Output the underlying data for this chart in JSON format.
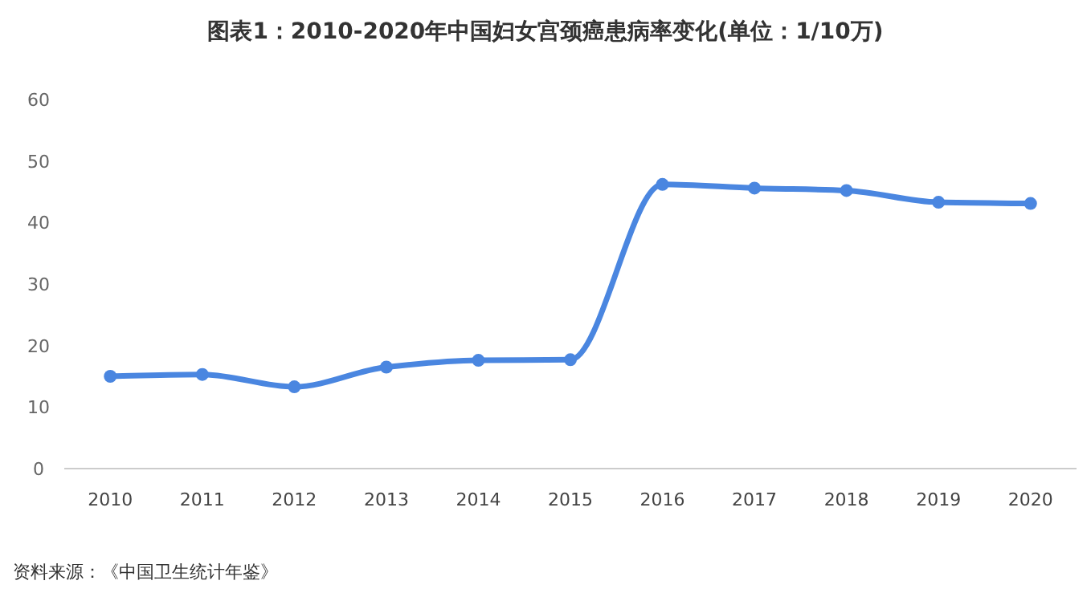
{
  "chart_data": {
    "type": "line",
    "title": "图表1：2010-2020年中国妇女宫颈癌患病率变化(单位：1/10万)",
    "categories": [
      "2010",
      "2011",
      "2012",
      "2013",
      "2014",
      "2015",
      "2016",
      "2017",
      "2018",
      "2019",
      "2020"
    ],
    "series": [
      {
        "color": "#4a86e0",
        "values": [
          15.0,
          15.3,
          13.3,
          16.5,
          17.6,
          17.7,
          46.2,
          45.6,
          45.2,
          43.3,
          43.1
        ]
      }
    ],
    "ylim": [
      0,
      60
    ],
    "yticks": [
      0,
      10,
      20,
      30,
      40,
      50,
      60
    ],
    "grid": false,
    "marker": "circle",
    "line_style": "solid",
    "annotations": [
      "资料来源：《中国卫生统计年鉴》"
    ]
  }
}
